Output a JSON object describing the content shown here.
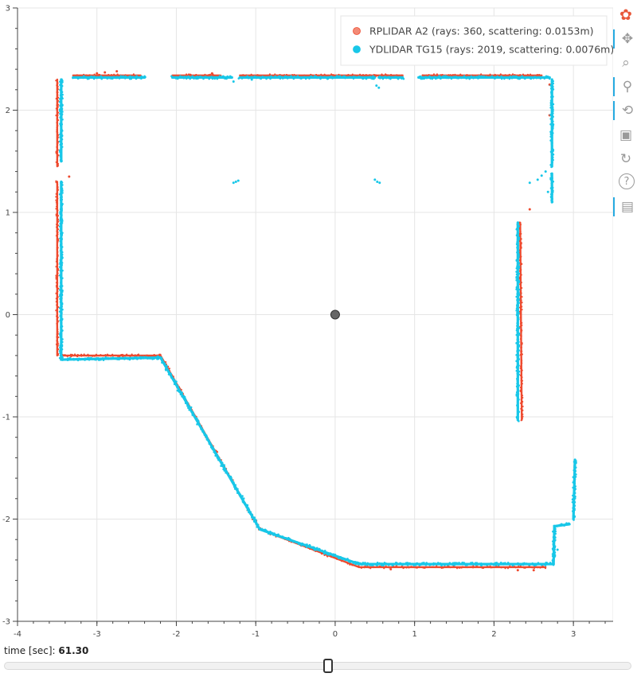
{
  "chart_data": {
    "type": "scatter",
    "title": "",
    "xlabel": "",
    "ylabel": "",
    "xlim": [
      -4,
      3.5
    ],
    "ylim": [
      -3,
      3
    ],
    "x_ticks": [
      -4,
      -3,
      -2,
      -1,
      0,
      1,
      2,
      3
    ],
    "y_ticks": [
      -3,
      -2,
      -1,
      0,
      1,
      2,
      3
    ],
    "grid": true,
    "legend_position": "top-right",
    "origin_marker": {
      "x": 0,
      "y": 0,
      "color": "#666666"
    },
    "series": [
      {
        "name": "RPLIDAR A2 (rays: 360, scattering: 0.0153m)",
        "color": "#ee4a2f",
        "legend_color": "#f38a76",
        "segments": [
          [
            [
              -3.5,
              2.3
            ],
            [
              -3.5,
              1.45
            ]
          ],
          [
            [
              -3.5,
              1.3
            ],
            [
              -3.5,
              -0.4
            ]
          ],
          [
            [
              -3.45,
              -0.4
            ],
            [
              -2.2,
              -0.4
            ]
          ],
          [
            [
              -2.2,
              -0.4
            ],
            [
              -0.95,
              -2.1
            ]
          ],
          [
            [
              -0.95,
              -2.1
            ],
            [
              0.3,
              -2.47
            ]
          ],
          [
            [
              0.3,
              -2.47
            ],
            [
              2.65,
              -2.47
            ]
          ],
          [
            [
              -3.3,
              2.34
            ],
            [
              -2.45,
              2.34
            ]
          ],
          [
            [
              -2.05,
              2.34
            ],
            [
              -1.45,
              2.34
            ]
          ],
          [
            [
              -1.2,
              2.34
            ],
            [
              0.5,
              2.34
            ]
          ],
          [
            [
              0.5,
              2.34
            ],
            [
              0.85,
              2.34
            ]
          ],
          [
            [
              1.1,
              2.34
            ],
            [
              2.6,
              2.34
            ]
          ],
          [
            [
              2.33,
              0.9
            ],
            [
              2.35,
              -1.03
            ]
          ]
        ],
        "points": [
          [
            -3.0,
            2.36
          ],
          [
            -2.9,
            2.37
          ],
          [
            -2.75,
            2.38
          ],
          [
            -1.55,
            2.36
          ],
          [
            -3.35,
            1.35
          ],
          [
            0.65,
            2.34
          ],
          [
            2.45,
            1.03
          ],
          [
            2.7,
            2.25
          ],
          [
            2.7,
            1.95
          ],
          [
            2.3,
            -2.5
          ],
          [
            2.5,
            -2.5
          ],
          [
            0.7,
            -2.49
          ]
        ]
      },
      {
        "name": "YDLIDAR TG15 (rays: 2019, scattering: 0.0076m)",
        "color": "#18c7e8",
        "legend_color": "#18c7e8",
        "segments": [
          [
            [
              -3.45,
              2.3
            ],
            [
              -3.45,
              1.5
            ]
          ],
          [
            [
              -3.45,
              1.3
            ],
            [
              -3.45,
              -0.44
            ]
          ],
          [
            [
              -3.45,
              -0.44
            ],
            [
              -2.2,
              -0.42
            ]
          ],
          [
            [
              -2.2,
              -0.42
            ],
            [
              -0.95,
              -2.1
            ]
          ],
          [
            [
              -0.95,
              -2.1
            ],
            [
              0.3,
              -2.44
            ]
          ],
          [
            [
              0.3,
              -2.44
            ],
            [
              2.75,
              -2.44
            ]
          ],
          [
            [
              2.75,
              -2.44
            ],
            [
              2.76,
              -2.07
            ]
          ],
          [
            [
              2.76,
              -2.07
            ],
            [
              2.95,
              -2.05
            ]
          ],
          [
            [
              3.0,
              -2.0
            ],
            [
              3.02,
              -1.42
            ]
          ],
          [
            [
              -3.3,
              2.32
            ],
            [
              -2.4,
              2.32
            ]
          ],
          [
            [
              -2.05,
              2.32
            ],
            [
              -1.3,
              2.32
            ]
          ],
          [
            [
              -1.2,
              2.32
            ],
            [
              0.5,
              2.32
            ]
          ],
          [
            [
              0.55,
              2.32
            ],
            [
              0.85,
              2.32
            ]
          ],
          [
            [
              1.05,
              2.32
            ],
            [
              2.7,
              2.32
            ]
          ],
          [
            [
              2.73,
              2.3
            ],
            [
              2.73,
              1.45
            ]
          ],
          [
            [
              2.73,
              1.38
            ],
            [
              2.73,
              1.1
            ]
          ],
          [
            [
              2.3,
              0.9
            ],
            [
              2.3,
              -1.03
            ]
          ]
        ],
        "points": [
          [
            -1.28,
            2.28
          ],
          [
            -1.25,
            1.3
          ],
          [
            -1.28,
            1.29
          ],
          [
            -1.22,
            1.31
          ],
          [
            0.53,
            1.3
          ],
          [
            0.56,
            1.29
          ],
          [
            0.5,
            1.32
          ],
          [
            0.55,
            2.22
          ],
          [
            0.52,
            2.24
          ],
          [
            2.45,
            1.29
          ],
          [
            2.55,
            1.32
          ],
          [
            2.6,
            1.36
          ],
          [
            2.65,
            1.4
          ],
          [
            2.68,
            1.2
          ],
          [
            -1.05,
            2.3
          ],
          [
            -0.95,
            2.32
          ],
          [
            2.8,
            -2.3
          ],
          [
            2.88,
            -2.06
          ]
        ]
      }
    ]
  },
  "slider": {
    "title": "time [sec]: ",
    "value_text": "61.30",
    "value_fraction": 0.516
  },
  "toolbar": {
    "items": [
      {
        "name": "bokeh-logo-icon",
        "active": false
      },
      {
        "name": "pan-icon",
        "active": true
      },
      {
        "name": "box-zoom-icon",
        "active": false
      },
      {
        "name": "wheel-zoom-icon",
        "active": true
      },
      {
        "name": "wheel-zoom-alt-icon",
        "active": true
      },
      {
        "name": "save-icon",
        "active": false
      },
      {
        "name": "reset-icon",
        "active": false
      },
      {
        "name": "help-icon",
        "active": false
      },
      {
        "name": "hover-icon",
        "active": true
      }
    ]
  }
}
